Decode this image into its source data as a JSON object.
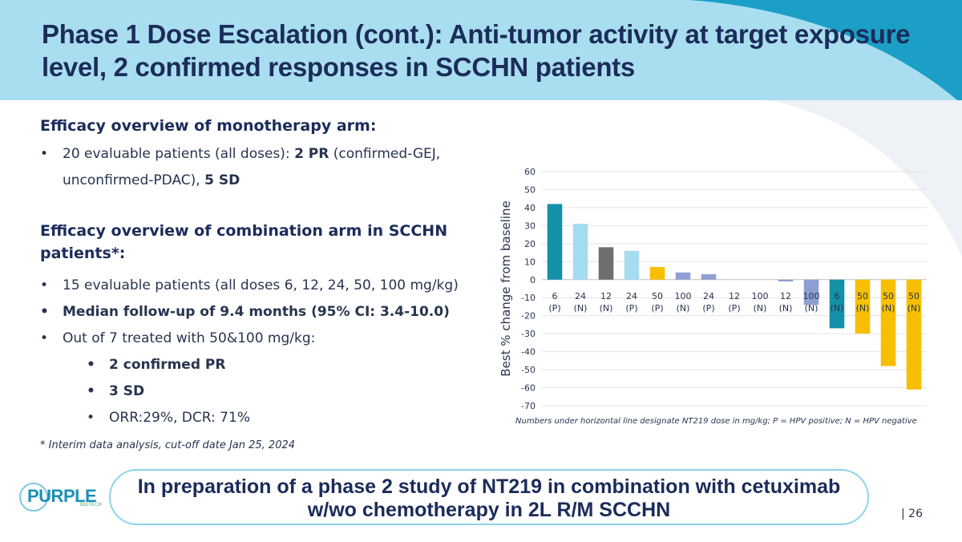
{
  "title": "Phase 1 Dose Escalation (cont.): Anti-tumor activity at target exposure level, 2 confirmed responses in SCCHN patients",
  "mono": {
    "heading": "Efficacy overview of monotherapy arm",
    "heading_suffix": ":",
    "b1_pre": "20 evaluable patients (all doses):  ",
    "b1_pr": "2 PR",
    "b1_mid": " (confirmed-GEJ, unconfirmed-PDAC), ",
    "b1_sd": "5 SD"
  },
  "combo": {
    "heading": "Efficacy overview of combination arm in SCCHN patients",
    "heading_suffix": "*:",
    "b1": "15 evaluable patients (all doses 6, 12, 24, 50, 100 mg/kg)",
    "b2": " Median follow-up of 9.4 months (95% CI: 3.4-10.0)",
    "b3": "Out of 7 treated with 50&100 mg/kg:",
    "s1": "2 confirmed PR",
    "s2": "3 SD",
    "s3": "ORR:29%, DCR: 71%"
  },
  "footnote": "* Interim data analysis, cut-off date Jan 25, 2024",
  "banner": "In preparation of a phase 2 study of NT219 in combination with cetuximab w/wo chemotherapy in 2L R/M SCCHN",
  "logo": {
    "text": "PURPLE",
    "sub": "BIOTECH"
  },
  "page_number": "| 26",
  "chart_note": "Numbers under horizontal line designate NT219 dose in mg/kg; P = HPV positive; N = HPV negative",
  "chart_data": {
    "type": "bar",
    "ylabel": "Best % change from baseline",
    "xlabel": "",
    "ylim": [
      -70,
      60
    ],
    "yticks": [
      60,
      50,
      40,
      30,
      20,
      10,
      0,
      -10,
      -20,
      -30,
      -40,
      -50,
      -60,
      -70
    ],
    "grid": true,
    "categories": [
      "6 (P)",
      "24 (N)",
      "12 (N)",
      "24 (P)",
      "50 (P)",
      "100 (N)",
      "24 (P)",
      "12 (P)",
      "100 (N)",
      "12 (N)",
      "100 (N)",
      "6 (N)",
      "50 (N)",
      "50 (N)",
      "50 (N)"
    ],
    "doses": [
      "6",
      "24",
      "12",
      "24",
      "50",
      "100",
      "24",
      "12",
      "100",
      "12",
      "100",
      "6",
      "50",
      "50",
      "50"
    ],
    "hpv": [
      "(P)",
      "(N)",
      "(N)",
      "(P)",
      "(P)",
      "(N)",
      "(P)",
      "(P)",
      "(N)",
      "(N)",
      "(N)",
      "(N)",
      "(N)",
      "(N)",
      "(N)"
    ],
    "values": [
      42,
      31,
      18,
      16,
      7,
      4,
      3,
      0,
      0,
      -1,
      -14,
      -27,
      -30,
      -48,
      -61
    ],
    "bar_colors": [
      "#1391a6",
      "#a6dcef",
      "#6d6e71",
      "#a6dcef",
      "#f7bf00",
      "#8f9fd3",
      "#8f9fd3",
      "#8f9fd3",
      "#8f9fd3",
      "#8f9fd3",
      "#8f9fd3",
      "#1391a6",
      "#f7bf00",
      "#f7bf00",
      "#f7bf00"
    ]
  }
}
